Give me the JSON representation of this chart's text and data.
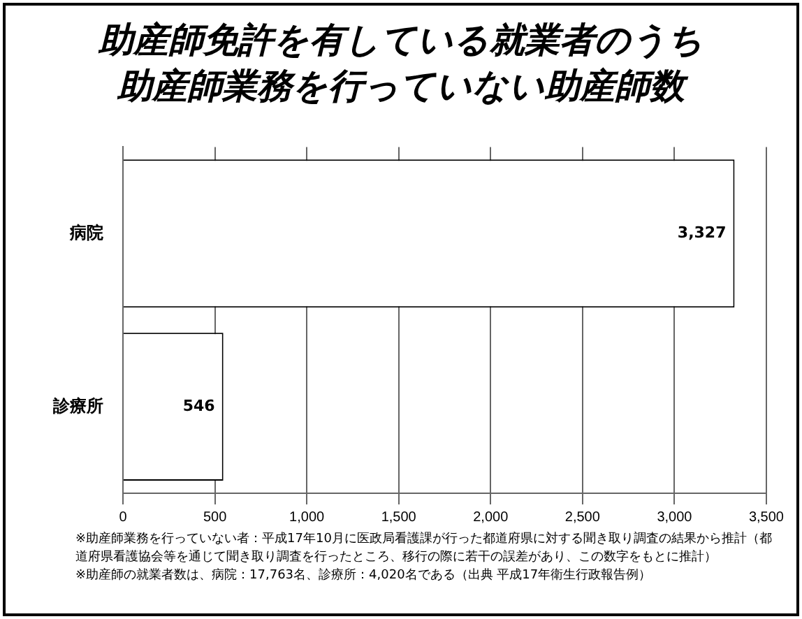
{
  "chart_data": {
    "type": "bar",
    "orientation": "horizontal",
    "title": "助産師免許を有している就業者のうち助産師業務を行っていない助産師数",
    "categories": [
      "病院",
      "診療所"
    ],
    "values": [
      3327,
      546
    ],
    "value_labels": [
      "3,327",
      "546"
    ],
    "color": "#ffffff",
    "xlim": [
      0,
      3500
    ],
    "xticks": [
      0,
      500,
      {
        "value": 1000,
        "label": "1,000"
      },
      {
        "value": 1500,
        "label": "1,500"
      },
      {
        "value": 2000,
        "label": "2,000"
      },
      {
        "value": 2500,
        "label": "2,500"
      },
      {
        "value": 3000,
        "label": "3,000"
      },
      {
        "value": 3500,
        "label": "3,500"
      }
    ],
    "grid": "x",
    "annotations": [
      "※助産師業務を行っていない者：平成17年10月に医政局看護課が行った都道府県に対する聞き取り調査の結果から推計（都道府県看護協会等を通じて聞き取り調査を行ったところ、移行の際に若干の誤差があり、この数字をもとに推計）",
      "※助産師の就業者数は、病院：17,763名、診療所：4,020名である（出典 平成17年衛生行政報告例）"
    ]
  }
}
